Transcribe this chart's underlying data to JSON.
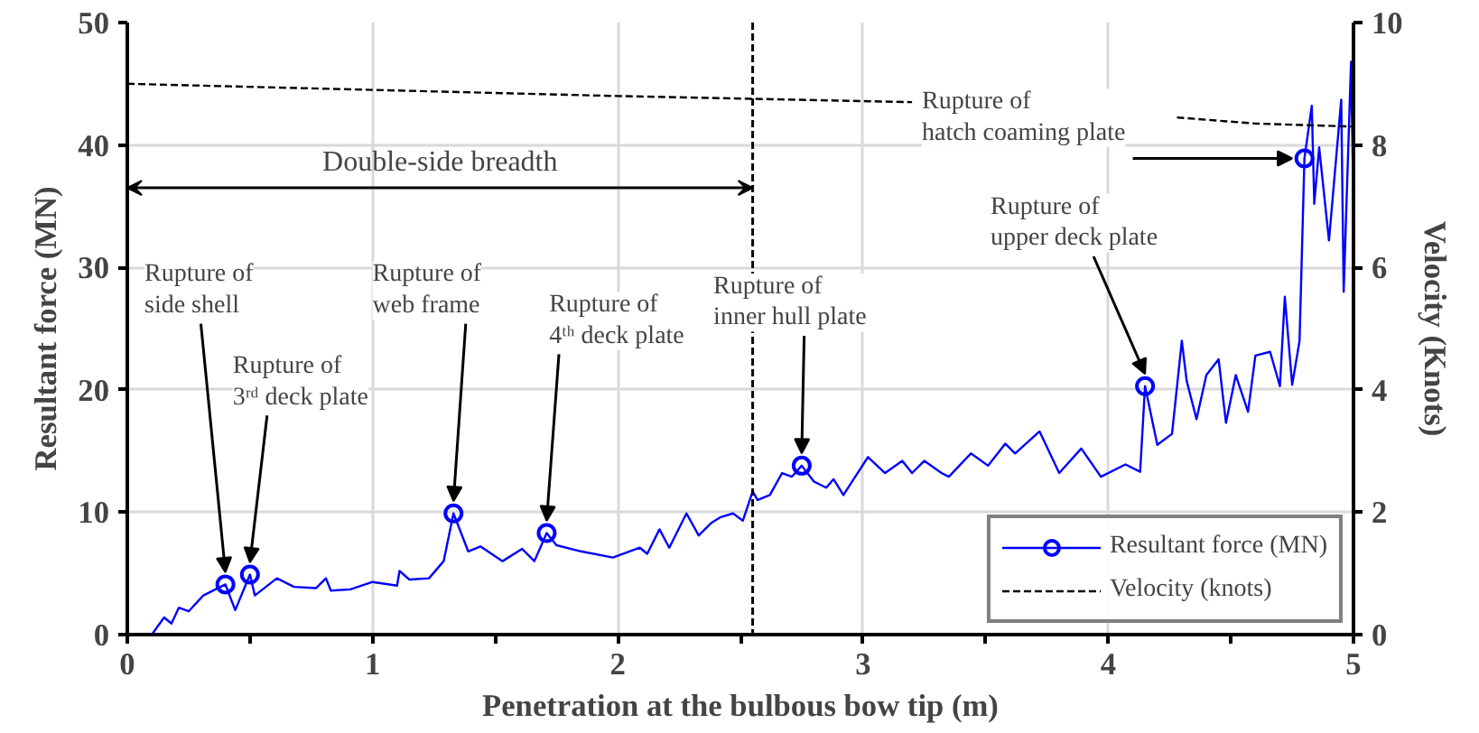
{
  "chart_data": {
    "type": "line",
    "xlabel": "Penetration at the bulbous bow tip (m)",
    "ylabel": "Resultant force (MN)",
    "y2label": "Velocity (Knots)",
    "xlim": [
      0,
      5
    ],
    "xticks": [
      0,
      {
        "value": 0.5,
        "label": null
      },
      1,
      {
        "value": 1.5,
        "label": null
      },
      2,
      {
        "value": 2.5,
        "label": null
      },
      3,
      {
        "value": 3.5,
        "label": null
      },
      4,
      {
        "value": 4.5,
        "label": null
      },
      5
    ],
    "ylim": [
      0,
      50
    ],
    "yticks": [
      0,
      10,
      20,
      30,
      40,
      50
    ],
    "y2lim": [
      0,
      10
    ],
    "y2ticks": [
      0,
      2,
      4,
      6,
      8,
      10
    ],
    "grid": true,
    "legend": "bottom right",
    "line_style": "solid",
    "series": [
      {
        "name": "Resultant force (MN)",
        "color": "#0000ff",
        "x": [
          0.1,
          0.15,
          0.18,
          0.21,
          0.25,
          0.31,
          0.4,
          0.44,
          0.5,
          0.52,
          0.61,
          0.68,
          0.77,
          0.81,
          0.83,
          0.91,
          1.0,
          1.1,
          1.11,
          1.15,
          1.23,
          1.29,
          1.33,
          1.39,
          1.44,
          1.53,
          1.61,
          1.66,
          1.71,
          1.75,
          1.85,
          1.98,
          2.09,
          2.12,
          2.17,
          2.21,
          2.28,
          2.33,
          2.38,
          2.42,
          2.47,
          2.51,
          2.55,
          2.57,
          2.62,
          2.67,
          2.71,
          2.75,
          2.8,
          2.85,
          2.88,
          2.92,
          3.02,
          3.09,
          3.16,
          3.2,
          3.25,
          3.32,
          3.35,
          3.44,
          3.51,
          3.58,
          3.62,
          3.72,
          3.8,
          3.89,
          3.97,
          4.07,
          4.13,
          4.15,
          4.2,
          4.26,
          4.3,
          4.32,
          4.36,
          4.4,
          4.45,
          4.48,
          4.52,
          4.57,
          4.6,
          4.66,
          4.7,
          4.72,
          4.75,
          4.78,
          4.8,
          4.83,
          4.84,
          4.86,
          4.9,
          4.95,
          4.96,
          4.99,
          5.0
        ],
        "values": [
          0,
          1.4,
          0.9,
          2.2,
          1.9,
          3.2,
          4.1,
          2.0,
          4.9,
          3.2,
          4.6,
          3.9,
          3.8,
          4.6,
          3.6,
          3.7,
          4.3,
          4.0,
          5.2,
          4.5,
          4.6,
          6.0,
          9.9,
          6.8,
          7.2,
          6.0,
          7.0,
          6.0,
          8.3,
          7.3,
          6.8,
          6.3,
          7.1,
          6.6,
          8.6,
          7.1,
          9.9,
          8.1,
          9.1,
          9.6,
          9.9,
          9.3,
          11.7,
          11.0,
          11.4,
          13.2,
          12.9,
          13.8,
          12.5,
          12.0,
          12.7,
          11.4,
          14.5,
          13.2,
          14.2,
          13.2,
          14.2,
          13.2,
          12.9,
          14.8,
          13.8,
          15.6,
          14.8,
          16.6,
          13.2,
          15.2,
          12.9,
          13.9,
          13.3,
          20.3,
          15.5,
          16.4,
          24.0,
          20.7,
          17.6,
          21.2,
          22.5,
          17.3,
          21.2,
          18.2,
          22.8,
          23.1,
          20.3,
          27.6,
          20.4,
          24.0,
          38.9,
          43.2,
          35.2,
          39.8,
          32.2,
          43.7,
          28.0,
          46.8,
          35.1
        ]
      },
      {
        "color": "#0000ff",
        "type": "scatter",
        "marker": "circle",
        "x": [
          0.4,
          0.5,
          1.33,
          1.71,
          2.75,
          4.15,
          4.8
        ],
        "values": [
          4.1,
          4.9,
          9.9,
          8.3,
          13.8,
          20.3,
          38.9
        ]
      },
      {
        "name": "Velocity (knots)",
        "color": "#000000",
        "axis": "y2",
        "line_style": "dashed",
        "x": [
          0,
          1,
          2,
          3.2,
          3.7,
          4.28,
          4.6,
          5.0
        ],
        "values": [
          9.0,
          8.9,
          8.8,
          8.7,
          null,
          8.45,
          8.35,
          8.3
        ]
      }
    ],
    "ref_lines": [
      {
        "axis": "x",
        "value": 2.55,
        "label": null,
        "line_style": "dashed",
        "color": "#000000"
      }
    ],
    "annotations": [
      {
        "text": "Rupture of\nside shell",
        "x": 0.4,
        "y": 4.1
      },
      {
        "text": "Rupture of\n3ʳᵈ deck plate",
        "x": 0.5,
        "y": 4.9
      },
      {
        "text": "Rupture of\nweb frame",
        "x": 1.33,
        "y": 9.9
      },
      {
        "text": "Rupture of\n4ᵗʰ deck plate",
        "x": 1.71,
        "y": 8.3
      },
      {
        "text": "Rupture of\ninner hull plate",
        "x": 2.75,
        "y": 13.8
      },
      {
        "text": "Rupture of\nupper deck plate",
        "x": 4.15,
        "y": 20.3
      },
      {
        "text": "Rupture of\nhatch coaming plate",
        "x": 4.8,
        "y": 38.9
      },
      "Double-side breadth"
    ]
  }
}
